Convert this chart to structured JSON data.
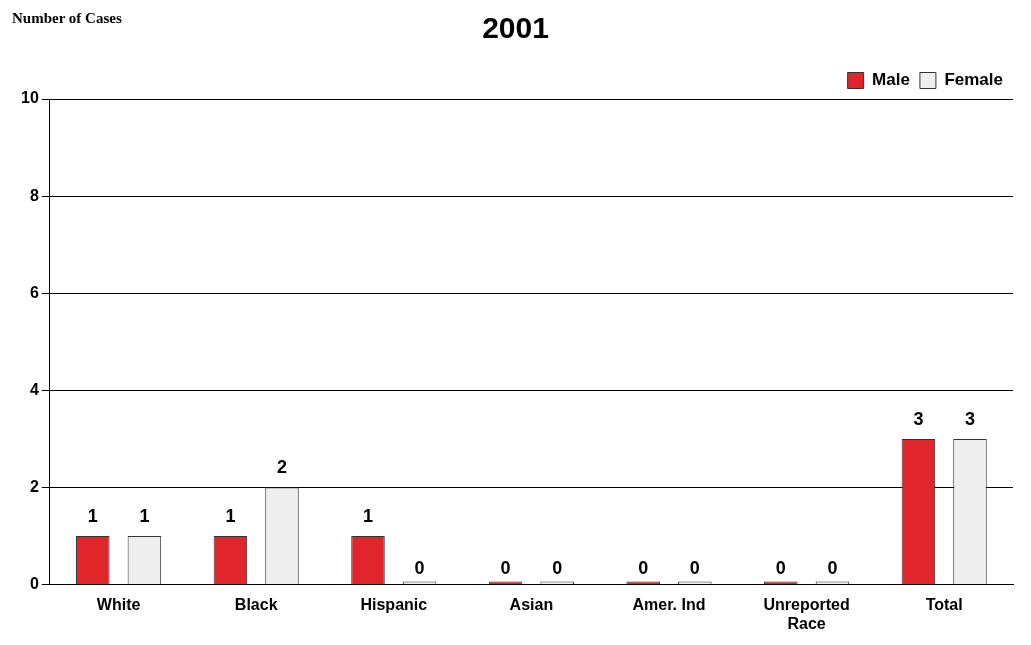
{
  "chart_data": {
    "type": "bar",
    "title": "2001",
    "ylabel": "Number of Cases",
    "categories": [
      "White",
      "Black",
      "Hispanic",
      "Asian",
      "Amer. Ind",
      "Unreported Race",
      "Total"
    ],
    "series": [
      {
        "name": "Male",
        "color": "#e0262b",
        "values": [
          1,
          1,
          1,
          0,
          0,
          0,
          3
        ]
      },
      {
        "name": "Female",
        "color": "#eeeeee",
        "values": [
          1,
          2,
          0,
          0,
          0,
          0,
          3
        ]
      }
    ],
    "ylim": [
      0,
      10
    ],
    "yticks": [
      0,
      2,
      4,
      6,
      8,
      10
    ],
    "grid": "y",
    "legend": "top right",
    "data_labels": true
  }
}
